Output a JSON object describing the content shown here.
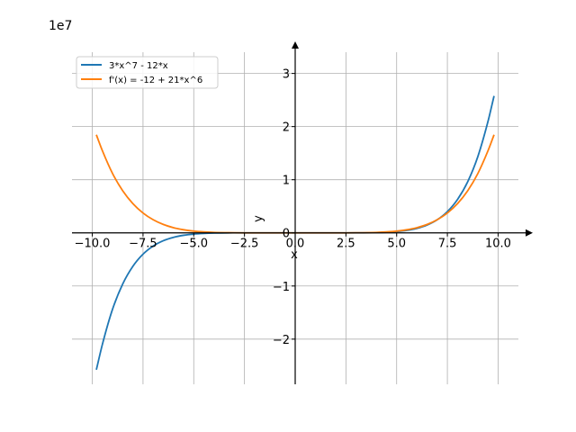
{
  "chart_data": {
    "type": "line",
    "title": "",
    "xlabel": "x",
    "ylabel": "y",
    "y_scale_label": "1e7",
    "xlim": [
      -11.0,
      11.0
    ],
    "ylim": [
      -2.85,
      3.4
    ],
    "y_unit_multiplier": 10000000,
    "grid": true,
    "legend_position": "top-left",
    "x_ticks": [
      -10.0,
      -7.5,
      -5.0,
      -2.5,
      0.0,
      2.5,
      5.0,
      7.5,
      10.0
    ],
    "x_tick_labels": [
      "−10.0",
      "−7.5",
      "−5.0",
      "−2.5",
      "0.0",
      "2.5",
      "5.0",
      "7.5",
      "10.0"
    ],
    "y_ticks": [
      -2,
      -1,
      0,
      1,
      2,
      3
    ],
    "y_tick_labels": [
      "−2",
      "−1",
      "0",
      "1",
      "2",
      "3"
    ],
    "series": [
      {
        "name": "3*x^7 - 12*x",
        "color": "#1f77b4",
        "x": [
          -9.8,
          -9.5,
          -9.0,
          -8.5,
          -8.0,
          -7.5,
          -7.0,
          -6.5,
          -6.0,
          -5.5,
          -5.0,
          -4.5,
          -4.0,
          -3.0,
          -2.0,
          -1.0,
          0.0,
          1.0,
          2.0,
          3.0,
          4.0,
          4.5,
          5.0,
          5.5,
          6.0,
          6.5,
          7.0,
          7.5,
          8.0,
          8.5,
          9.0,
          9.5,
          9.8
        ],
        "y": [
          -25765000,
          -20952000,
          -14348000,
          -9615000,
          -6291000,
          -4005000,
          -2471000,
          -1471000,
          -840000,
          -457000,
          -234000,
          -112000,
          -49000,
          -6500,
          -360,
          9,
          0,
          -9,
          360,
          6500,
          49000,
          112000,
          234000,
          457000,
          840000,
          1471000,
          2471000,
          4005000,
          6291000,
          9615000,
          14348000,
          20952000,
          25765000
        ]
      },
      {
        "name": "f'(x) = -12 + 21*x^6",
        "color": "#ff7f0e",
        "x": [
          -9.8,
          -9.5,
          -9.0,
          -8.5,
          -8.0,
          -7.5,
          -7.0,
          -6.5,
          -6.0,
          -5.5,
          -5.0,
          -4.5,
          -4.0,
          -3.0,
          -2.0,
          -1.0,
          0.0,
          1.0,
          2.0,
          3.0,
          4.0,
          4.5,
          5.0,
          5.5,
          6.0,
          6.5,
          7.0,
          7.5,
          8.0,
          8.5,
          9.0,
          9.5,
          9.8
        ],
        "y": [
          18460000,
          15441000,
          11160000,
          7917000,
          5505000,
          3737000,
          2471000,
          1584000,
          980000,
          581000,
          328000,
          174000,
          86000,
          15300,
          1330,
          9,
          -12,
          9,
          1330,
          15300,
          86000,
          174000,
          328000,
          581000,
          980000,
          1584000,
          2471000,
          3737000,
          5505000,
          7917000,
          11160000,
          15441000,
          18460000
        ]
      }
    ]
  }
}
